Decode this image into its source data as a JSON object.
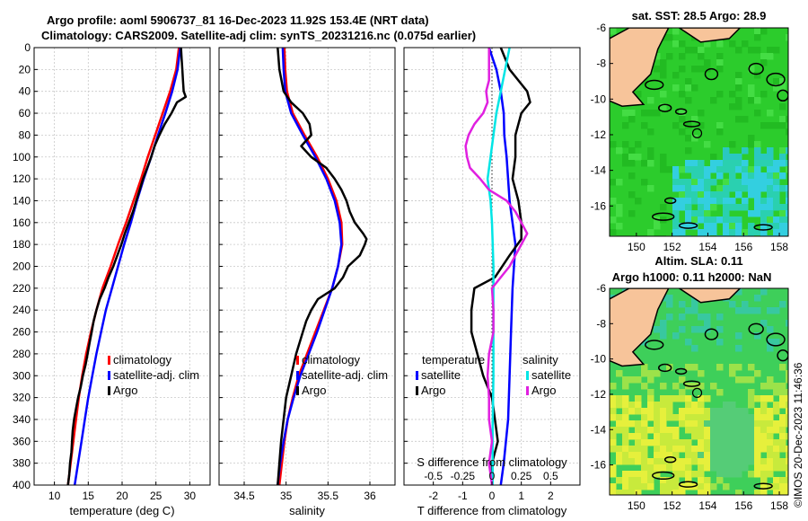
{
  "header": {
    "line1": "Argo profile: aoml 5906737_81 16-Dec-2023 11.92S 153.4E (NRT data)",
    "line2": "Climatology: CARS2009. Satellite-adj clim: synTS_20231216.nc (0.075d earlier)"
  },
  "copyright": "©IMOS 20-Dec-2023 11:46:36",
  "colors": {
    "climatology": "#ff0000",
    "satellite": "#0000ff",
    "argo": "#000000",
    "sal_satellite": "#00e5e5",
    "sal_argo": "#e020e0"
  },
  "chart_data": [
    {
      "type": "line",
      "id": "temp",
      "xlabel": "temperature (deg C)",
      "ylabel": "",
      "xlim": [
        7,
        33
      ],
      "ylim": [
        0,
        400
      ],
      "y_reversed": true,
      "xticks": [
        10,
        15,
        20,
        25,
        30
      ],
      "yticks": [
        0,
        20,
        40,
        60,
        80,
        100,
        120,
        140,
        160,
        180,
        200,
        220,
        240,
        260,
        280,
        300,
        320,
        340,
        360,
        380,
        400
      ],
      "legend": {
        "position": "lower-right",
        "items": [
          "climatology",
          "satellite-adj. clim",
          "Argo"
        ]
      },
      "series": [
        {
          "name": "climatology",
          "color": "#ff0000",
          "depth": [
            0,
            20,
            40,
            60,
            80,
            100,
            120,
            140,
            160,
            180,
            200,
            220,
            240,
            260,
            280,
            300,
            320,
            340,
            360,
            380,
            400
          ],
          "values": [
            28.4,
            28.0,
            27.1,
            26.0,
            24.9,
            23.8,
            22.8,
            21.7,
            20.6,
            19.4,
            18.3,
            17.1,
            16.2,
            15.4,
            14.7,
            14.1,
            13.6,
            13.2,
            12.8,
            12.4,
            12.0
          ]
        },
        {
          "name": "satellite-adj. clim",
          "color": "#0000ff",
          "depth": [
            0,
            20,
            40,
            60,
            80,
            100,
            120,
            140,
            160,
            180,
            200,
            220,
            240,
            260,
            280,
            300,
            320,
            340,
            360,
            380,
            400
          ],
          "values": [
            28.6,
            28.2,
            27.4,
            26.4,
            25.3,
            24.3,
            23.2,
            22.2,
            21.3,
            20.3,
            19.4,
            18.5,
            17.6,
            16.9,
            16.2,
            15.6,
            15.0,
            14.5,
            14.0,
            13.5,
            13.0
          ]
        },
        {
          "name": "Argo",
          "color": "#000000",
          "depth": [
            0,
            10,
            20,
            30,
            40,
            45,
            50,
            60,
            70,
            80,
            90,
            100,
            110,
            120,
            130,
            140,
            150,
            160,
            170,
            180,
            190,
            200,
            210,
            220,
            230,
            240,
            250,
            260,
            270,
            280,
            290,
            300,
            310,
            320,
            330,
            340,
            350,
            360,
            370,
            380,
            390,
            400
          ],
          "values": [
            28.7,
            28.8,
            28.9,
            29.0,
            29.1,
            29.4,
            28.1,
            27.3,
            26.3,
            25.5,
            24.8,
            24.3,
            23.7,
            23.1,
            22.6,
            22.1,
            21.6,
            21.0,
            20.4,
            19.9,
            19.3,
            18.7,
            18.0,
            17.4,
            16.7,
            16.2,
            15.8,
            15.5,
            15.2,
            14.9,
            14.6,
            14.2,
            13.9,
            13.5,
            13.2,
            12.9,
            12.7,
            12.6,
            12.5,
            12.3,
            12.2,
            12.0
          ]
        }
      ]
    },
    {
      "type": "line",
      "id": "sal",
      "xlabel": "salinity",
      "xlim": [
        34.2,
        36.3
      ],
      "ylim": [
        0,
        400
      ],
      "y_reversed": true,
      "xticks": [
        34.5,
        35,
        35.5,
        36
      ],
      "legend": {
        "position": "lower-right",
        "items": [
          "climatology",
          "satellite-adj. clim",
          "Argo"
        ]
      },
      "series": [
        {
          "name": "climatology",
          "color": "#ff0000",
          "depth": [
            0,
            20,
            40,
            60,
            80,
            100,
            120,
            140,
            160,
            180,
            200,
            220,
            240,
            260,
            280,
            300,
            320,
            340,
            360,
            380,
            400
          ],
          "values": [
            34.98,
            34.99,
            35.01,
            35.08,
            35.22,
            35.37,
            35.5,
            35.6,
            35.66,
            35.67,
            35.62,
            35.55,
            35.45,
            35.35,
            35.25,
            35.15,
            35.08,
            35.02,
            34.98,
            34.95,
            34.92
          ]
        },
        {
          "name": "satellite-adj. clim",
          "color": "#0000ff",
          "depth": [
            0,
            20,
            40,
            60,
            80,
            100,
            120,
            140,
            160,
            180,
            200,
            220,
            240,
            260,
            280,
            300,
            320,
            340,
            360,
            380,
            400
          ],
          "values": [
            34.96,
            34.97,
            34.99,
            35.06,
            35.2,
            35.35,
            35.48,
            35.58,
            35.64,
            35.66,
            35.62,
            35.55,
            35.46,
            35.37,
            35.27,
            35.17,
            35.09,
            35.02,
            34.97,
            34.93,
            34.9
          ]
        },
        {
          "name": "Argo",
          "color": "#000000",
          "depth": [
            0,
            20,
            40,
            50,
            60,
            70,
            80,
            90,
            100,
            110,
            120,
            130,
            140,
            150,
            160,
            170,
            175,
            180,
            190,
            200,
            210,
            220,
            230,
            240,
            250,
            260,
            280,
            300,
            320,
            340,
            360,
            380,
            400
          ],
          "values": [
            34.9,
            34.92,
            34.97,
            35.06,
            35.2,
            35.28,
            35.3,
            35.18,
            35.3,
            35.48,
            35.58,
            35.66,
            35.72,
            35.76,
            35.82,
            35.92,
            35.96,
            35.94,
            35.88,
            35.74,
            35.68,
            35.58,
            35.38,
            35.3,
            35.24,
            35.2,
            35.12,
            35.06,
            35.0,
            34.97,
            34.94,
            34.92,
            34.9
          ]
        }
      ]
    },
    {
      "type": "line",
      "id": "diff",
      "xlabel": "T difference from climatology",
      "top_axis_label": "S difference from climatology",
      "xlim": [
        -3,
        3
      ],
      "ylim": [
        0,
        400
      ],
      "y_reversed": true,
      "xticks": [
        -2,
        -1,
        0,
        1,
        2
      ],
      "top_ticks": [
        {
          "x": -2,
          "label": "-0.5"
        },
        {
          "x": -1,
          "label": "-0.25"
        },
        {
          "x": 0,
          "label": "0"
        },
        {
          "x": 1,
          "label": "0.25"
        },
        {
          "x": 2,
          "label": "0.5"
        }
      ],
      "legend": {
        "position": "lower",
        "groups": [
          {
            "title": "temperature",
            "items": [
              "satellite",
              "Argo"
            ]
          },
          {
            "title": "salinity",
            "items": [
              "satellite",
              "Argo"
            ]
          }
        ]
      },
      "series": [
        {
          "name": "temperature satellite",
          "color": "#0000ff",
          "depth": [
            0,
            20,
            40,
            60,
            80,
            100,
            140,
            180,
            220,
            260,
            300,
            340,
            380,
            400
          ],
          "values": [
            -0.1,
            0.15,
            0.3,
            0.4,
            0.42,
            0.5,
            0.6,
            0.8,
            0.7,
            0.65,
            0.6,
            0.55,
            0.4,
            0.3
          ]
        },
        {
          "name": "temperature Argo",
          "color": "#000000",
          "depth": [
            0,
            20,
            30,
            40,
            50,
            60,
            80,
            100,
            120,
            140,
            160,
            175,
            190,
            210,
            220,
            240,
            260,
            280,
            300,
            320,
            340,
            360,
            380,
            400
          ],
          "values": [
            0.3,
            0.6,
            0.9,
            1.2,
            1.3,
            1.0,
            0.8,
            0.8,
            0.7,
            0.9,
            1.0,
            1.0,
            0.6,
            0.1,
            -0.6,
            -0.7,
            -0.7,
            -0.5,
            -0.3,
            0.0,
            0.1,
            0.2,
            0.0,
            0.0
          ]
        },
        {
          "name": "salinity satellite",
          "color": "#00e5e5",
          "depth": [
            0,
            20,
            40,
            60,
            80,
            100,
            120,
            140,
            160,
            200,
            250,
            300,
            350,
            400
          ],
          "values": [
            0.6,
            0.45,
            0.3,
            0.15,
            0.05,
            -0.05,
            -0.15,
            -0.05,
            0.0,
            0.05,
            0.05,
            0.05,
            0.02,
            0.02
          ]
        },
        {
          "name": "salinity Argo",
          "color": "#e020e0",
          "depth": [
            0,
            30,
            40,
            50,
            60,
            70,
            80,
            90,
            100,
            110,
            120,
            130,
            140,
            150,
            160,
            170,
            180,
            190,
            200,
            220,
            240,
            260,
            280,
            300,
            320,
            340,
            360,
            380,
            400
          ],
          "values": [
            -0.1,
            -0.1,
            -0.2,
            -0.15,
            -0.3,
            -0.6,
            -0.8,
            -0.9,
            -0.85,
            -0.75,
            -0.4,
            -0.1,
            0.5,
            0.8,
            1.0,
            1.2,
            1.0,
            0.8,
            0.6,
            0.0,
            0.05,
            0.05,
            -0.1,
            -0.15,
            -0.1,
            -0.1,
            0.0,
            -0.1,
            0.0
          ]
        }
      ]
    },
    {
      "type": "heatmap",
      "id": "sst_map",
      "title": "sat. SST: 28.5 Argo: 28.9",
      "xlim": [
        148.5,
        158.5
      ],
      "ylim": [
        -17.7,
        -6
      ],
      "xticks": [
        150,
        152,
        154,
        156,
        158
      ],
      "yticks": [
        -6,
        -8,
        -10,
        -12,
        -14,
        -16
      ],
      "profile_location": {
        "lon": 153.4,
        "lat": -11.92
      }
    },
    {
      "type": "heatmap",
      "id": "sla_map",
      "title": "Altim. SLA: 0.11",
      "subtitle": "Argo h1000: 0.11 h2000: NaN",
      "xlim": [
        148.5,
        158.5
      ],
      "ylim": [
        -17.7,
        -6
      ],
      "xticks": [
        150,
        152,
        154,
        156,
        158
      ],
      "yticks": [
        -6,
        -8,
        -10,
        -12,
        -14,
        -16
      ],
      "profile_location": {
        "lon": 153.4,
        "lat": -11.92
      }
    }
  ]
}
